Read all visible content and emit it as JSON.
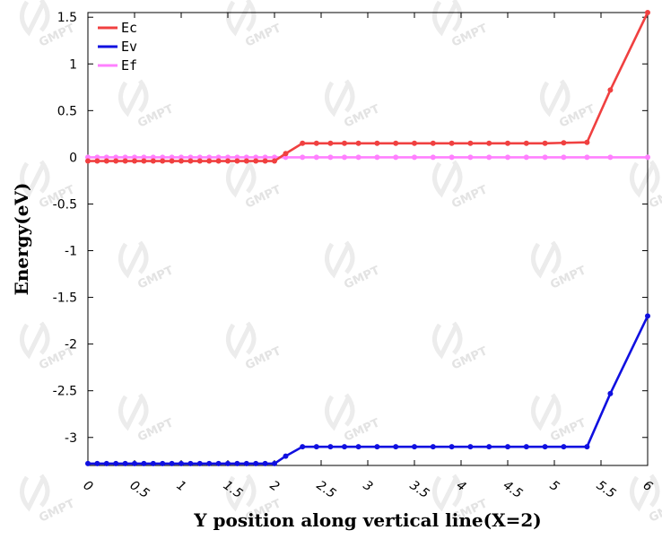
{
  "watermark": "GMPT",
  "chart_data": {
    "type": "line",
    "title": "",
    "xlabel": "Y position along vertical line(X=2)",
    "ylabel": "Energy(eV)",
    "xlim": [
      0,
      6
    ],
    "ylim": [
      -3.3,
      1.55
    ],
    "x_ticks": [
      "0",
      "0.5",
      "1",
      "1.5",
      "2",
      "2.5",
      "3",
      "3.5",
      "4",
      "4.5",
      "5",
      "5.5",
      "6"
    ],
    "y_ticks": [
      "1.5",
      "1",
      "0.5",
      "0",
      "-0.5",
      "-1",
      "-1.5",
      "-2",
      "-2.5",
      "-3"
    ],
    "legend_position": "top-left",
    "grid": false,
    "series": [
      {
        "name": "Ec",
        "color": "#f04040",
        "x": [
          0,
          0.1,
          0.2,
          0.3,
          0.4,
          0.5,
          0.6,
          0.7,
          0.8,
          0.9,
          1.0,
          1.1,
          1.2,
          1.3,
          1.4,
          1.5,
          1.6,
          1.7,
          1.8,
          1.9,
          2.0,
          2.12,
          2.3,
          2.45,
          2.6,
          2.75,
          2.9,
          3.1,
          3.3,
          3.5,
          3.7,
          3.9,
          4.1,
          4.3,
          4.5,
          4.7,
          4.9,
          5.1,
          5.35,
          5.6,
          6.0
        ],
        "values": [
          -0.04,
          -0.04,
          -0.04,
          -0.04,
          -0.04,
          -0.04,
          -0.04,
          -0.04,
          -0.04,
          -0.04,
          -0.04,
          -0.04,
          -0.04,
          -0.04,
          -0.04,
          -0.04,
          -0.04,
          -0.04,
          -0.04,
          -0.04,
          -0.04,
          0.04,
          0.15,
          0.15,
          0.15,
          0.15,
          0.15,
          0.15,
          0.15,
          0.15,
          0.15,
          0.15,
          0.15,
          0.15,
          0.15,
          0.15,
          0.15,
          0.155,
          0.16,
          0.72,
          1.55
        ]
      },
      {
        "name": "Ev",
        "color": "#1010e0",
        "x": [
          0,
          0.1,
          0.2,
          0.3,
          0.4,
          0.5,
          0.6,
          0.7,
          0.8,
          0.9,
          1.0,
          1.1,
          1.2,
          1.3,
          1.4,
          1.5,
          1.6,
          1.7,
          1.8,
          1.9,
          2.0,
          2.12,
          2.3,
          2.45,
          2.6,
          2.75,
          2.9,
          3.1,
          3.3,
          3.5,
          3.7,
          3.9,
          4.1,
          4.3,
          4.5,
          4.7,
          4.9,
          5.1,
          5.35,
          5.6,
          6.0
        ],
        "values": [
          -3.28,
          -3.28,
          -3.28,
          -3.28,
          -3.28,
          -3.28,
          -3.28,
          -3.28,
          -3.28,
          -3.28,
          -3.28,
          -3.28,
          -3.28,
          -3.28,
          -3.28,
          -3.28,
          -3.28,
          -3.28,
          -3.28,
          -3.28,
          -3.28,
          -3.2,
          -3.1,
          -3.1,
          -3.1,
          -3.1,
          -3.1,
          -3.1,
          -3.1,
          -3.1,
          -3.1,
          -3.1,
          -3.1,
          -3.1,
          -3.1,
          -3.1,
          -3.1,
          -3.1,
          -3.1,
          -2.53,
          -1.7
        ]
      },
      {
        "name": "Ef",
        "color": "#ff80ff",
        "x": [
          0,
          0.1,
          0.2,
          0.3,
          0.4,
          0.5,
          0.6,
          0.7,
          0.8,
          0.9,
          1.0,
          1.1,
          1.2,
          1.3,
          1.4,
          1.5,
          1.6,
          1.7,
          1.8,
          1.9,
          2.0,
          2.12,
          2.3,
          2.45,
          2.6,
          2.75,
          2.9,
          3.1,
          3.3,
          3.5,
          3.7,
          3.9,
          4.1,
          4.3,
          4.5,
          4.7,
          4.9,
          5.1,
          5.35,
          5.6,
          6.0
        ],
        "values": [
          0.0,
          0.0,
          0.0,
          0.0,
          0.0,
          0.0,
          0.0,
          0.0,
          0.0,
          0.0,
          0.0,
          0.0,
          0.0,
          0.0,
          0.0,
          0.0,
          0.0,
          0.0,
          0.0,
          0.0,
          0.0,
          0.0,
          0.0,
          0.0,
          0.0,
          0.0,
          0.0,
          0.0,
          0.0,
          0.0,
          0.0,
          0.0,
          0.0,
          0.0,
          0.0,
          0.0,
          0.0,
          0.0,
          0.0,
          0.0,
          0.0
        ]
      }
    ]
  }
}
